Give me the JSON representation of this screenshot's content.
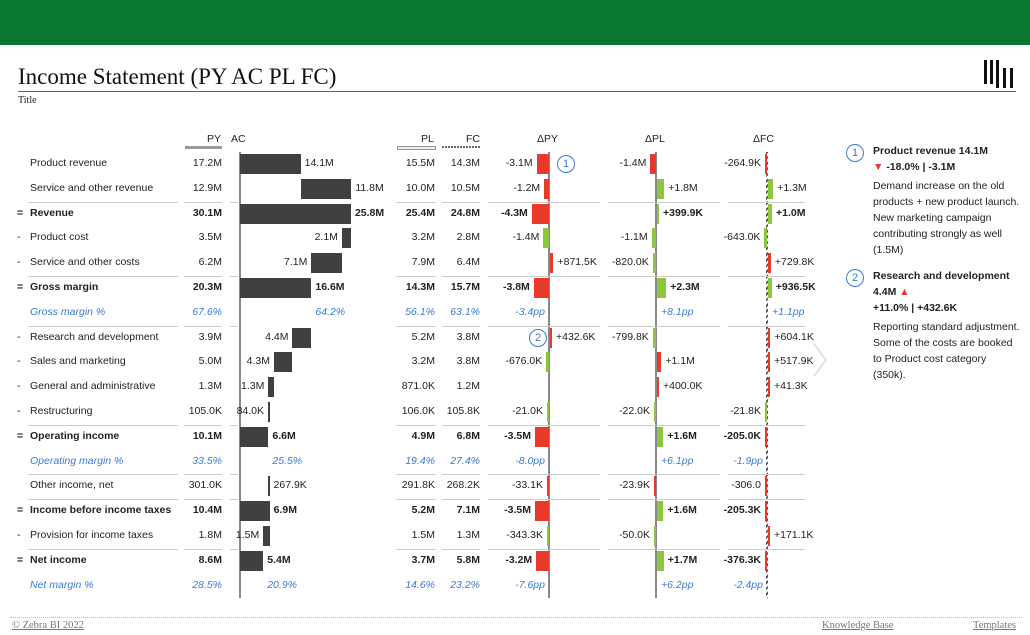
{
  "header": {
    "title": "Income Statement (PY AC PL FC)",
    "subtitle": "Title"
  },
  "columns": {
    "py": "PY",
    "ac": "AC",
    "pl": "PL",
    "fc": "FC",
    "dpy": "ΔPY",
    "dpl": "ΔPL",
    "dfc": "ΔFC"
  },
  "colors": {
    "brand": "#08772f",
    "good": "#8cc63f",
    "bad": "#e8392b",
    "bar": "#404040",
    "percent": "#3a7bd5"
  },
  "rows": [
    {
      "label": "Product revenue",
      "prefix": "",
      "kind": "add",
      "py": "17.2M",
      "ac": "14.1M",
      "pl": "15.5M",
      "fc": "14.3M",
      "dpy": "-3.1M",
      "dpl": "-1.4M",
      "dfc": "-264.9K"
    },
    {
      "label": "Service and other revenue",
      "prefix": "",
      "kind": "add",
      "py": "12.9M",
      "ac": "11.8M",
      "pl": "10.0M",
      "fc": "10.5M",
      "dpy": "-1.2M",
      "dpl": "+1.8M",
      "dfc": "+1.3M"
    },
    {
      "label": "Revenue",
      "prefix": "=",
      "kind": "total",
      "py": "30.1M",
      "ac": "25.8M",
      "pl": "25.4M",
      "fc": "24.8M",
      "dpy": "-4.3M",
      "dpl": "+399.9K",
      "dfc": "+1.0M"
    },
    {
      "label": "Product cost",
      "prefix": "-",
      "kind": "sub",
      "py": "3.5M",
      "ac": "2.1M",
      "pl": "3.2M",
      "fc": "2.8M",
      "dpy": "-1.4M",
      "dpl": "-1.1M",
      "dfc": "-643.0K"
    },
    {
      "label": "Service and other costs",
      "prefix": "-",
      "kind": "sub",
      "py": "6.2M",
      "ac": "7.1M",
      "pl": "7.9M",
      "fc": "6.4M",
      "dpy": "+871.5K",
      "dpl": "-820.0K",
      "dfc": "+729.8K"
    },
    {
      "label": "Gross margin",
      "prefix": "=",
      "kind": "total",
      "py": "20.3M",
      "ac": "16.6M",
      "pl": "14.3M",
      "fc": "15.7M",
      "dpy": "-3.8M",
      "dpl": "+2.3M",
      "dfc": "+936.5K"
    },
    {
      "label": "Gross margin %",
      "prefix": "",
      "kind": "pct",
      "py": "67.6%",
      "ac": "64.2%",
      "pl": "56.1%",
      "fc": "63.1%",
      "dpy": "-3.4pp",
      "dpl": "+8.1pp",
      "dfc": "+1.1pp"
    },
    {
      "label": "Research and development",
      "prefix": "-",
      "kind": "sub",
      "py": "3.9M",
      "ac": "4.4M",
      "pl": "5.2M",
      "fc": "3.8M",
      "dpy": "+432.6K",
      "dpl": "-799.8K",
      "dfc": "+604.1K"
    },
    {
      "label": "Sales and marketing",
      "prefix": "-",
      "kind": "sub",
      "py": "5.0M",
      "ac": "4.3M",
      "pl": "3.2M",
      "fc": "3.8M",
      "dpy": "-676.0K",
      "dpl": "+1.1M",
      "dfc": "+517.9K"
    },
    {
      "label": "General and administrative",
      "prefix": "-",
      "kind": "sub",
      "py": "1.3M",
      "ac": "1.3M",
      "pl": "871.0K",
      "fc": "1.2M",
      "dpy": "",
      "dpl": "+400.0K",
      "dfc": "+41.3K"
    },
    {
      "label": "Restructuring",
      "prefix": "-",
      "kind": "sub",
      "py": "105.0K",
      "ac": "84.0K",
      "pl": "106.0K",
      "fc": "105.8K",
      "dpy": "-21.0K",
      "dpl": "-22.0K",
      "dfc": "-21.8K"
    },
    {
      "label": "Operating income",
      "prefix": "=",
      "kind": "total",
      "py": "10.1M",
      "ac": "6.6M",
      "pl": "4.9M",
      "fc": "6.8M",
      "dpy": "-3.5M",
      "dpl": "+1.6M",
      "dfc": "-205.0K"
    },
    {
      "label": "Operating margin %",
      "prefix": "",
      "kind": "pct",
      "py": "33.5%",
      "ac": "25.5%",
      "pl": "19.4%",
      "fc": "27.4%",
      "dpy": "-8.0pp",
      "dpl": "+6.1pp",
      "dfc": "-1.9pp"
    },
    {
      "label": "Other income, net",
      "prefix": "",
      "kind": "add",
      "py": "301.0K",
      "ac": "267.9K",
      "pl": "291.8K",
      "fc": "268.2K",
      "dpy": "-33.1K",
      "dpl": "-23.9K",
      "dfc": "-306.0"
    },
    {
      "label": "Income before income taxes",
      "prefix": "=",
      "kind": "total",
      "py": "10.4M",
      "ac": "6.9M",
      "pl": "5.2M",
      "fc": "7.1M",
      "dpy": "-3.5M",
      "dpl": "+1.6M",
      "dfc": "-205.3K"
    },
    {
      "label": "Provision for income taxes",
      "prefix": "-",
      "kind": "sub",
      "py": "1.8M",
      "ac": "1.5M",
      "pl": "1.5M",
      "fc": "1.3M",
      "dpy": "-343.3K",
      "dpl": "-50.0K",
      "dfc": "+171.1K"
    },
    {
      "label": "Net income",
      "prefix": "=",
      "kind": "total",
      "py": "8.6M",
      "ac": "5.4M",
      "pl": "3.7M",
      "fc": "5.8M",
      "dpy": "-3.2M",
      "dpl": "+1.7M",
      "dfc": "-376.3K"
    },
    {
      "label": "Net margin %",
      "prefix": "",
      "kind": "pct",
      "py": "28.5%",
      "ac": "20.9%",
      "pl": "14.6%",
      "fc": "23.2%",
      "dpy": "-7.6pp",
      "dpl": "+6.2pp",
      "dfc": "-2.4pp"
    }
  ],
  "separators_before_rows": [
    2,
    5,
    7,
    11,
    13,
    14,
    16
  ],
  "markers": [
    {
      "number": "1",
      "row": 0
    },
    {
      "number": "2",
      "row": 7
    }
  ],
  "comments": [
    {
      "number": "1",
      "title": "Product revenue 14.1M",
      "arrow": "▼",
      "delta": "-18.0% | -3.1M",
      "text": "Demand increase on the old products + new product launch. New marketing campaign contributing strongly as well (1.5M)"
    },
    {
      "number": "2",
      "title": "Research and development 4.4M",
      "arrow": "▲",
      "delta": "+11.0% | +432.6K",
      "text": "Reporting standard adjustment. Some of the costs are booked to Product cost category (350k)."
    }
  ],
  "footer": {
    "copyright": "© Zebra BI 2022",
    "knowledge_base": "Knowledge Base",
    "templates": "Templates"
  }
}
